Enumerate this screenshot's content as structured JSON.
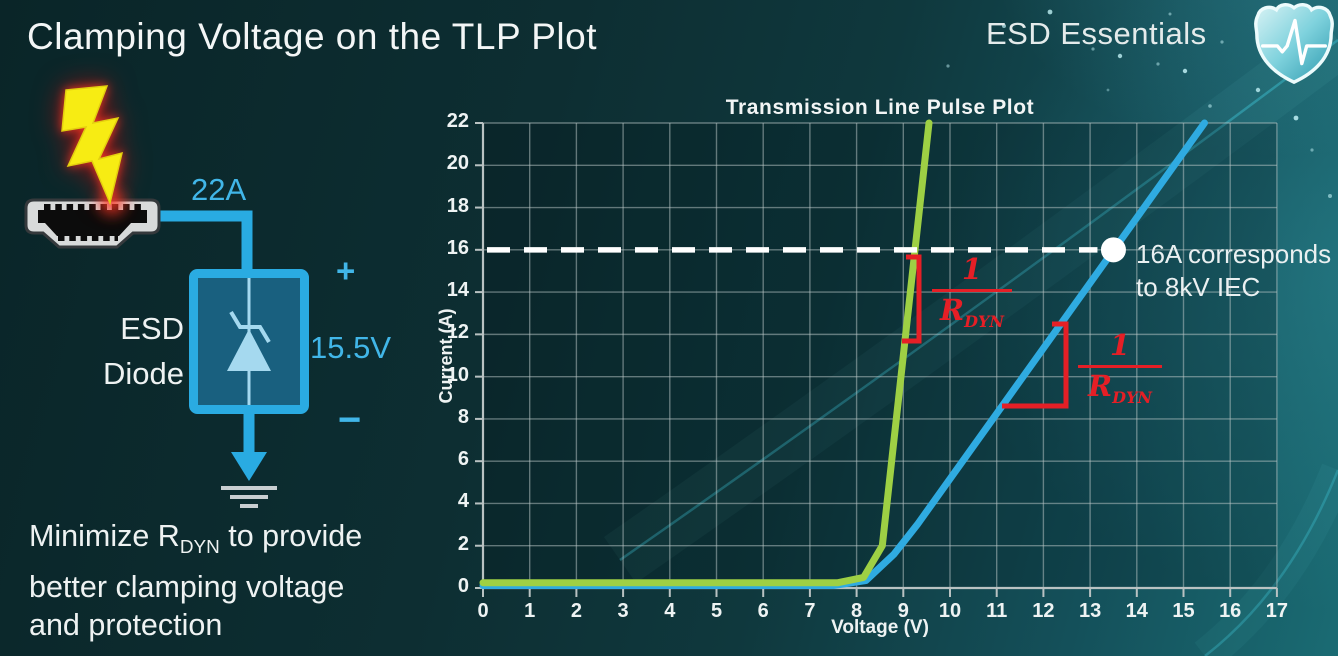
{
  "slide": {
    "title": "Clamping Voltage on the TLP Plot",
    "brand": "ESD Essentials"
  },
  "diagram": {
    "surge_current": "22A",
    "plus": "+",
    "minus": "−",
    "clamp_voltage": "15.5V",
    "device_line1": "ESD",
    "device_line2": "Diode"
  },
  "note": {
    "line1_pre": "Minimize R",
    "line1_sub": "DYN",
    "line1_post": " to provide",
    "line2": "better clamping voltage",
    "line3": "and protection"
  },
  "colors": {
    "accent_cyan": "#29abe2",
    "green_curve": "#9ed044",
    "blue_curve": "#2fabe1",
    "annotation_red": "#e51f26",
    "reference_white": "#ffffff"
  },
  "chart_data": {
    "type": "line",
    "title": "Transmission Line Pulse Plot",
    "xlabel": "Voltage (V)",
    "ylabel": "Current (A)",
    "xlim": [
      0,
      17
    ],
    "ylim": [
      0,
      22
    ],
    "grid": true,
    "x_ticks": [
      0,
      1,
      2,
      3,
      4,
      5,
      6,
      7,
      8,
      9,
      10,
      11,
      12,
      13,
      14,
      15,
      16,
      17
    ],
    "y_ticks": [
      0,
      2,
      4,
      6,
      8,
      10,
      12,
      14,
      16,
      18,
      20,
      22
    ],
    "series": [
      {
        "id": "blue",
        "color": "#2fabe1",
        "points": [
          [
            0,
            0.12
          ],
          [
            7.5,
            0.12
          ],
          [
            8.2,
            0.35
          ],
          [
            8.8,
            1.6
          ],
          [
            9.3,
            3.0
          ],
          [
            15.45,
            22
          ]
        ]
      },
      {
        "id": "green",
        "color": "#9ed044",
        "points": [
          [
            0,
            0.25
          ],
          [
            7.6,
            0.25
          ],
          [
            8.15,
            0.5
          ],
          [
            8.55,
            2.0
          ],
          [
            9.55,
            22
          ]
        ]
      }
    ],
    "reference_line": {
      "y": 16,
      "style": "dashed",
      "color": "#ffffff"
    },
    "marker": {
      "x": 13.5,
      "y": 16,
      "label": [
        "16A corresponds",
        "to 8kV IEC"
      ]
    },
    "slope_fraction": {
      "numerator": "1",
      "denominator": "R",
      "denominator_sub": "DYN"
    }
  }
}
